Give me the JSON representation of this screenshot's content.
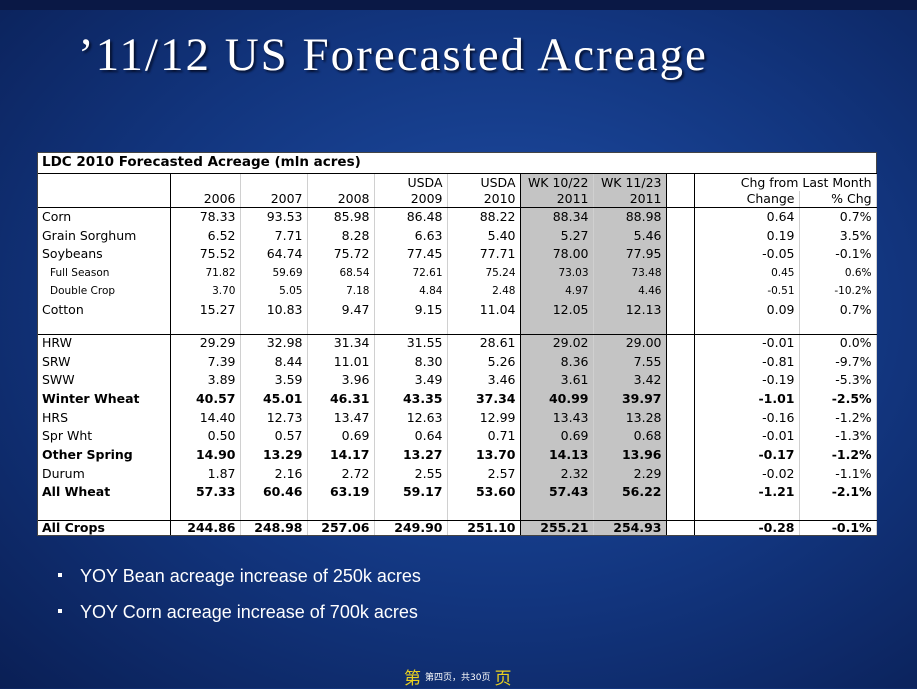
{
  "slide": {
    "title": "’11/12 US Forecasted Acreage",
    "bullets": [
      "YOY Bean acreage increase of 250k acres",
      "YOY Corn acreage increase of 700k acres"
    ],
    "footer": {
      "left": "第",
      "center": "第四页，共30页",
      "right": "页"
    }
  },
  "table": {
    "title": "LDC 2010 Forecasted Acreage (mln acres)",
    "header_top": [
      "",
      "",
      "",
      "",
      "USDA",
      "USDA",
      "WK 10/22",
      "WK 11/23",
      "",
      "Chg from Last Month",
      ""
    ],
    "header_bottom": [
      "",
      "2006",
      "2007",
      "2008",
      "2009",
      "2010",
      "2011",
      "2011",
      "",
      "Change",
      "% Chg"
    ],
    "rows": [
      [
        "Corn",
        "78.33",
        "93.53",
        "85.98",
        "86.48",
        "88.22",
        "88.34",
        "88.98",
        "",
        "0.64",
        "0.7%"
      ],
      [
        "Grain Sorghum",
        "6.52",
        "7.71",
        "8.28",
        "6.63",
        "5.40",
        "5.27",
        "5.46",
        "",
        "0.19",
        "3.5%"
      ],
      [
        "Soybeans",
        "75.52",
        "64.74",
        "75.72",
        "77.45",
        "77.71",
        "78.00",
        "77.95",
        "",
        "-0.05",
        "-0.1%"
      ],
      [
        "Full Season",
        "71.82",
        "59.69",
        "68.54",
        "72.61",
        "75.24",
        "73.03",
        "73.48",
        "",
        "0.45",
        "0.6%"
      ],
      [
        "Double Crop",
        "3.70",
        "5.05",
        "7.18",
        "4.84",
        "2.48",
        "4.97",
        "4.46",
        "",
        "-0.51",
        "-10.2%"
      ],
      [
        "Cotton",
        "15.27",
        "10.83",
        "9.47",
        "9.15",
        "11.04",
        "12.05",
        "12.13",
        "",
        "0.09",
        "0.7%"
      ],
      [
        "",
        "",
        "",
        "",
        "",
        "",
        "",
        "",
        "",
        "",
        ""
      ],
      [
        "HRW",
        "29.29",
        "32.98",
        "31.34",
        "31.55",
        "28.61",
        "29.02",
        "29.00",
        "",
        "-0.01",
        "0.0%"
      ],
      [
        "SRW",
        "7.39",
        "8.44",
        "11.01",
        "8.30",
        "5.26",
        "8.36",
        "7.55",
        "",
        "-0.81",
        "-9.7%"
      ],
      [
        "SWW",
        "3.89",
        "3.59",
        "3.96",
        "3.49",
        "3.46",
        "3.61",
        "3.42",
        "",
        "-0.19",
        "-5.3%"
      ],
      [
        "Winter Wheat",
        "40.57",
        "45.01",
        "46.31",
        "43.35",
        "37.34",
        "40.99",
        "39.97",
        "",
        "-1.01",
        "-2.5%"
      ],
      [
        "HRS",
        "14.40",
        "12.73",
        "13.47",
        "12.63",
        "12.99",
        "13.43",
        "13.28",
        "",
        "-0.16",
        "-1.2%"
      ],
      [
        "Spr Wht",
        "0.50",
        "0.57",
        "0.69",
        "0.64",
        "0.71",
        "0.69",
        "0.68",
        "",
        "-0.01",
        "-1.3%"
      ],
      [
        "Other Spring",
        "14.90",
        "13.29",
        "14.17",
        "13.27",
        "13.70",
        "14.13",
        "13.96",
        "",
        "-0.17",
        "-1.2%"
      ],
      [
        "Durum",
        "1.87",
        "2.16",
        "2.72",
        "2.55",
        "2.57",
        "2.32",
        "2.29",
        "",
        "-0.02",
        "-1.1%"
      ],
      [
        "All Wheat",
        "57.33",
        "60.46",
        "63.19",
        "59.17",
        "53.60",
        "57.43",
        "56.22",
        "",
        "-1.21",
        "-2.1%"
      ],
      [
        "",
        "",
        "",
        "",
        "",
        "",
        "",
        "",
        "",
        "",
        ""
      ],
      [
        "All Crops",
        "244.86",
        "248.98",
        "257.06",
        "249.90",
        "251.10",
        "255.21",
        "254.93",
        "",
        "-0.28",
        "-0.1%"
      ]
    ]
  }
}
